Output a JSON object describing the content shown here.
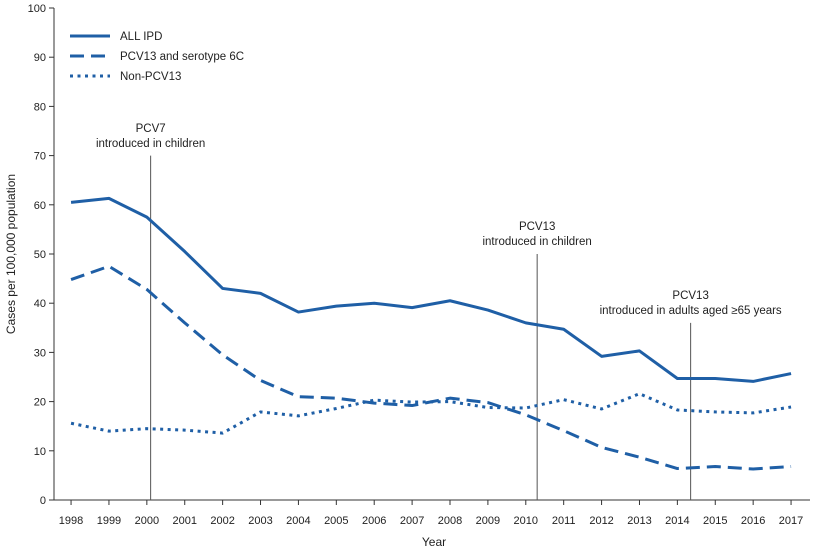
{
  "chart_data": {
    "type": "line",
    "title": "",
    "xlabel": "Year",
    "ylabel": "Cases per 100,000 population",
    "ylim": [
      0,
      100
    ],
    "yticks": [
      0,
      10,
      20,
      30,
      40,
      50,
      60,
      70,
      80,
      90,
      100
    ],
    "x": [
      1998,
      1999,
      2000,
      2001,
      2002,
      2003,
      2004,
      2005,
      2006,
      2007,
      2008,
      2009,
      2010,
      2011,
      2012,
      2013,
      2014,
      2015,
      2016,
      2017
    ],
    "series": [
      {
        "name": "ALL IPD",
        "style": "solid",
        "color": "#1f5fa6",
        "values": [
          60.5,
          61.3,
          57.5,
          50.5,
          43.0,
          42.0,
          38.2,
          39.4,
          40.0,
          39.1,
          40.5,
          38.6,
          36.0,
          34.7,
          29.2,
          30.3,
          24.7,
          24.7,
          24.1,
          25.7
        ]
      },
      {
        "name": "PCV13 and serotype 6C",
        "style": "dashed",
        "color": "#1f5fa6",
        "values": [
          44.8,
          47.5,
          42.8,
          36.0,
          29.5,
          24.3,
          21.0,
          20.7,
          19.7,
          19.2,
          20.7,
          19.8,
          17.3,
          14.1,
          10.7,
          8.7,
          6.4,
          6.8,
          6.3,
          6.8
        ]
      },
      {
        "name": "Non-PCV13",
        "style": "dotted",
        "color": "#1f5fa6",
        "values": [
          15.6,
          14.0,
          14.5,
          14.2,
          13.6,
          17.9,
          17.1,
          18.6,
          20.3,
          19.9,
          20.0,
          18.8,
          18.7,
          20.4,
          18.5,
          21.6,
          18.3,
          17.9,
          17.7,
          18.9
        ]
      }
    ],
    "annotations": [
      {
        "x": 2000.1,
        "line1": "PCV7",
        "line2": "introduced in children",
        "label_top": 72.0,
        "line_top": 70.0
      },
      {
        "x": 2010.3,
        "line1": "PCV13",
        "line2": "introduced in children",
        "label_top": 52.0,
        "line_top": 50.0
      },
      {
        "x": 2014.35,
        "line1": "PCV13",
        "line2": "introduced in adults aged ≥65 years",
        "label_top": 38.0,
        "line_top": 36.0
      }
    ],
    "legend": {
      "position": "top-left",
      "entries": [
        "ALL IPD",
        "PCV13 and serotype 6C",
        "Non-PCV13"
      ]
    },
    "grid": false
  }
}
